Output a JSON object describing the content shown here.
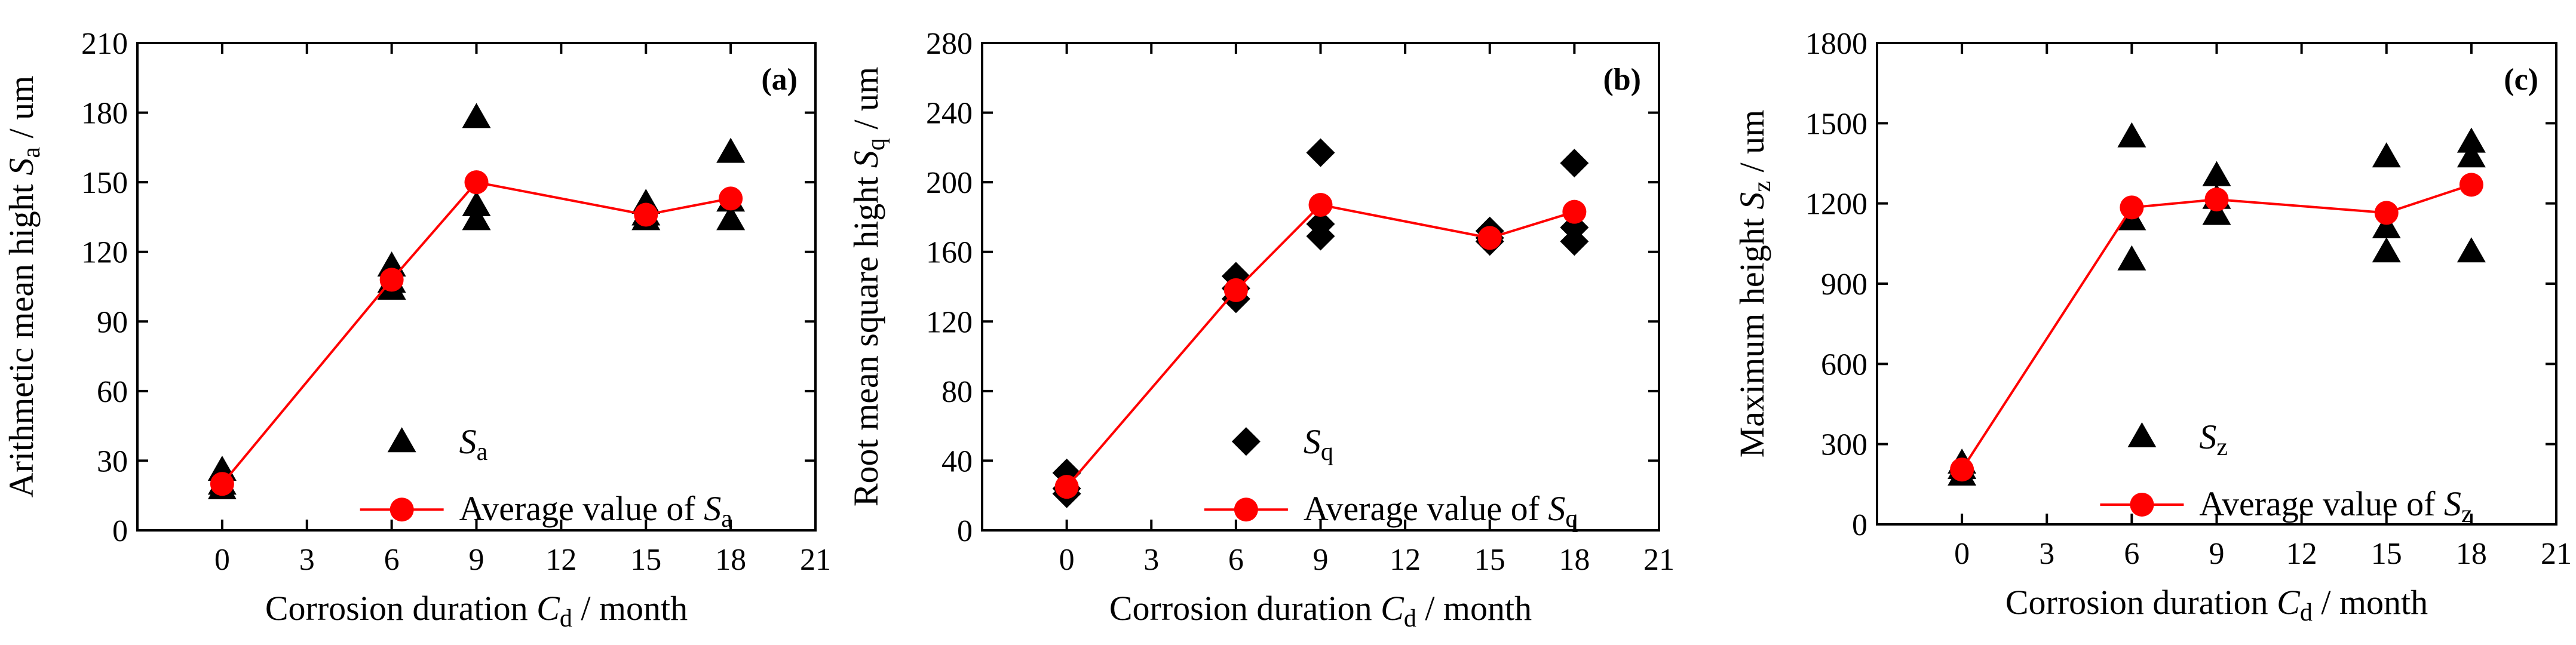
{
  "colors": {
    "axis": "#000000",
    "measured": "#000000",
    "average": "#ff0000"
  },
  "chart_data": [
    {
      "type": "scatter",
      "panel_label": "(a)",
      "title": "",
      "xlabel": {
        "pre": "Corrosion duration ",
        "sym": "C",
        "sub": "d",
        "post": " / month"
      },
      "ylabel": {
        "pre": "Arithmetic mean hight ",
        "sym": "S",
        "sub": "a",
        "post": " / um"
      },
      "xlim": [
        -3,
        21
      ],
      "ylim": [
        0,
        210
      ],
      "xticks": [
        0,
        3,
        6,
        9,
        12,
        15,
        18,
        21
      ],
      "yticks": [
        0,
        30,
        60,
        90,
        120,
        150,
        180,
        210
      ],
      "marker": "triangle",
      "series": [
        {
          "name": "S_a",
          "legend": {
            "sym": "S",
            "sub": "a",
            "pre": ""
          },
          "points": [
            [
              0,
              26
            ],
            [
              0,
              18
            ],
            [
              0,
              20
            ],
            [
              6,
              114
            ],
            [
              6,
              104
            ],
            [
              6,
              107
            ],
            [
              9,
              178
            ],
            [
              9,
              140
            ],
            [
              9,
              134
            ],
            [
              15,
              141
            ],
            [
              15,
              134
            ],
            [
              15,
              136
            ],
            [
              18,
              163
            ],
            [
              18,
              134
            ],
            [
              18,
              142
            ]
          ]
        },
        {
          "name": "Average value of S_a",
          "legend": {
            "pre": "Average value of ",
            "sym": "S",
            "sub": "a"
          },
          "points": [
            [
              0,
              20
            ],
            [
              6,
              108
            ],
            [
              9,
              150
            ],
            [
              15,
              136
            ],
            [
              18,
              143
            ]
          ]
        }
      ]
    },
    {
      "type": "scatter",
      "panel_label": "(b)",
      "title": "",
      "xlabel": {
        "pre": "Corrosion duration ",
        "sym": "C",
        "sub": "d",
        "post": " / month"
      },
      "ylabel": {
        "pre": "Root mean square hight ",
        "sym": "S",
        "sub": "q",
        "post": " / um"
      },
      "xlim": [
        -3,
        21
      ],
      "ylim": [
        0,
        280
      ],
      "xticks": [
        0,
        3,
        6,
        9,
        12,
        15,
        18,
        21
      ],
      "yticks": [
        0,
        40,
        80,
        120,
        160,
        200,
        240,
        280
      ],
      "marker": "diamond",
      "series": [
        {
          "name": "S_q",
          "legend": {
            "sym": "S",
            "sub": "q",
            "pre": ""
          },
          "points": [
            [
              0,
              33
            ],
            [
              0,
              21
            ],
            [
              0,
              24
            ],
            [
              6,
              146
            ],
            [
              6,
              133
            ],
            [
              6,
              139
            ],
            [
              9,
              217
            ],
            [
              9,
              176
            ],
            [
              9,
              169
            ],
            [
              15,
              172
            ],
            [
              15,
              166
            ],
            [
              15,
              168
            ],
            [
              18,
              211
            ],
            [
              18,
              174
            ],
            [
              18,
              166
            ]
          ]
        },
        {
          "name": "Average value of S_q",
          "legend": {
            "pre": "Average value of ",
            "sym": "S",
            "sub": "q"
          },
          "points": [
            [
              0,
              25
            ],
            [
              6,
              138
            ],
            [
              9,
              187
            ],
            [
              15,
              168
            ],
            [
              18,
              183
            ]
          ]
        }
      ]
    },
    {
      "type": "scatter",
      "panel_label": "(c)",
      "title": "",
      "xlabel": {
        "pre": "Corrosion duration ",
        "sym": "C",
        "sub": "d",
        "post": " / month"
      },
      "ylabel": {
        "pre": "Maximum height ",
        "sym": "S",
        "sub": "z",
        "post": " / um"
      },
      "xlim": [
        -3,
        21
      ],
      "ylim": [
        0,
        1800
      ],
      "xticks": [
        0,
        3,
        6,
        9,
        12,
        15,
        18,
        21
      ],
      "yticks": [
        0,
        300,
        600,
        900,
        1200,
        1500,
        1800
      ],
      "marker": "triangle",
      "series": [
        {
          "name": "S_z",
          "legend": {
            "sym": "S",
            "sub": "z",
            "pre": ""
          },
          "points": [
            [
              0,
              230
            ],
            [
              0,
              185
            ],
            [
              0,
              210
            ],
            [
              6,
              1450
            ],
            [
              6,
              1140
            ],
            [
              6,
              990
            ],
            [
              9,
              1305
            ],
            [
              9,
              1160
            ],
            [
              9,
              1220
            ],
            [
              15,
              1375
            ],
            [
              15,
              1110
            ],
            [
              15,
              1020
            ],
            [
              18,
              1430
            ],
            [
              18,
              1375
            ],
            [
              18,
              1020
            ]
          ]
        },
        {
          "name": "Average value of S_z",
          "legend": {
            "pre": "Average value of ",
            "sym": "S",
            "sub": "z"
          },
          "points": [
            [
              0,
              205
            ],
            [
              6,
              1185
            ],
            [
              9,
              1215
            ],
            [
              15,
              1165
            ],
            [
              18,
              1270
            ]
          ]
        }
      ]
    }
  ]
}
